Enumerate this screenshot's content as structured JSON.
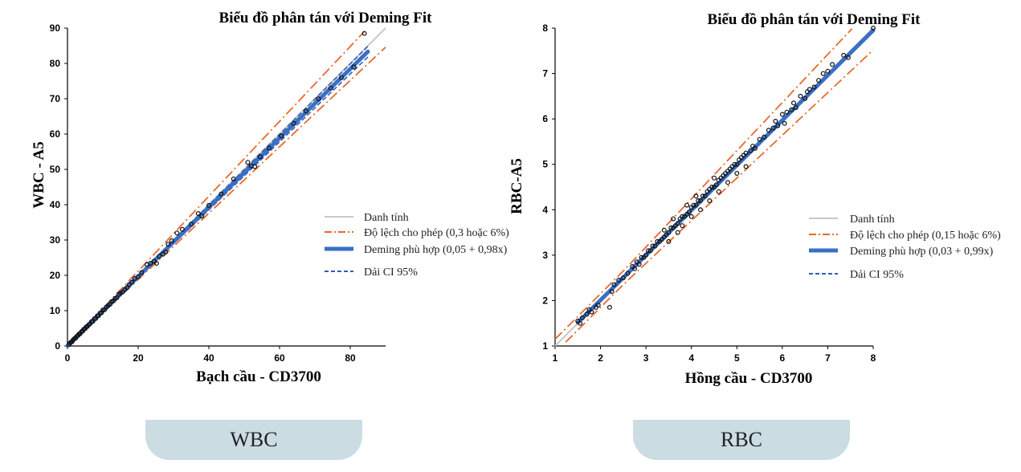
{
  "colors": {
    "identity": "#c8c8c8",
    "tolerance": "#e8692e",
    "deming": "#3a6fc4",
    "ci": "#2f5db5",
    "points": "#111111",
    "tab_background": "#cbdce3"
  },
  "chart_data": [
    {
      "type": "scatter",
      "title": "Biểu đồ phân tán với Deming Fit",
      "xlabel": "Bạch cầu - CD3700",
      "ylabel": "WBC - A5",
      "xlim": [
        0,
        90
      ],
      "ylim": [
        0,
        90
      ],
      "xticks": [
        "0",
        "20",
        "40",
        "60",
        "80"
      ],
      "yticks": [
        "0",
        "10",
        "20",
        "30",
        "40",
        "50",
        "60",
        "70",
        "80",
        "90"
      ],
      "grid": false,
      "legend_position": "right",
      "legend": {
        "identity": "Danh tính",
        "tolerance": "Độ lệch cho phép (0,3 hoặc 6%)",
        "deming": "Deming phù hợp (0,05 + 0,98x)",
        "ci": "Dải CI 95%"
      },
      "deming_fit": {
        "intercept": 0.05,
        "slope": 0.98,
        "x_range": [
          0,
          85
        ]
      },
      "tolerance": {
        "abs": 0.3,
        "rel": 0.06
      },
      "ci_band": 1.5,
      "points": [
        [
          0.4,
          0.4
        ],
        [
          0.7,
          0.8
        ],
        [
          1.0,
          1.1
        ],
        [
          1.3,
          1.2
        ],
        [
          1.6,
          1.7
        ],
        [
          2.0,
          2.1
        ],
        [
          2.3,
          2.2
        ],
        [
          2.6,
          2.7
        ],
        [
          3.0,
          3.0
        ],
        [
          3.3,
          3.4
        ],
        [
          3.6,
          3.5
        ],
        [
          4.0,
          4.1
        ],
        [
          4.3,
          4.2
        ],
        [
          4.6,
          4.7
        ],
        [
          5.0,
          4.9
        ],
        [
          5.3,
          5.4
        ],
        [
          5.6,
          5.5
        ],
        [
          6.0,
          6.0
        ],
        [
          6.4,
          6.3
        ],
        [
          6.8,
          6.9
        ],
        [
          7.2,
          7.0
        ],
        [
          7.6,
          7.7
        ],
        [
          8.0,
          7.8
        ],
        [
          8.4,
          8.5
        ],
        [
          8.8,
          8.6
        ],
        [
          9.2,
          9.3
        ],
        [
          9.6,
          9.4
        ],
        [
          10.0,
          10.2
        ],
        [
          10.5,
          10.3
        ],
        [
          11.0,
          11.0
        ],
        [
          11.5,
          11.4
        ],
        [
          12.0,
          11.8
        ],
        [
          12.5,
          12.6
        ],
        [
          13.0,
          12.8
        ],
        [
          13.5,
          13.5
        ],
        [
          14.0,
          13.7
        ],
        [
          14.5,
          14.6
        ],
        [
          15.0,
          15.0
        ],
        [
          15.6,
          15.3
        ],
        [
          16.2,
          16.0
        ],
        [
          16.8,
          16.5
        ],
        [
          17.5,
          17.4
        ],
        [
          18.2,
          18.0
        ],
        [
          19.0,
          19.1
        ],
        [
          20.0,
          19.6
        ],
        [
          21.0,
          20.8
        ],
        [
          22.5,
          23.0
        ],
        [
          23.5,
          23.4
        ],
        [
          24.5,
          24.0
        ],
        [
          25.2,
          23.4
        ],
        [
          26.0,
          25.4
        ],
        [
          27.0,
          26.0
        ],
        [
          27.8,
          26.6
        ],
        [
          28.5,
          28.8
        ],
        [
          29.5,
          29.8
        ],
        [
          31.0,
          32.0
        ],
        [
          32.5,
          33.0
        ],
        [
          35.0,
          34.5
        ],
        [
          37.0,
          37.5
        ],
        [
          38.0,
          36.8
        ],
        [
          40.0,
          39.8
        ],
        [
          43.5,
          43.0
        ],
        [
          47.0,
          47.3
        ],
        [
          51.0,
          52.0
        ],
        [
          52.0,
          51.0
        ],
        [
          53.0,
          50.8
        ],
        [
          54.5,
          53.6
        ],
        [
          57.0,
          56.0
        ],
        [
          60.5,
          59.5
        ],
        [
          64.0,
          63.0
        ],
        [
          67.5,
          66.5
        ],
        [
          71.0,
          70.0
        ],
        [
          74.5,
          73.0
        ],
        [
          77.5,
          76.0
        ],
        [
          81.0,
          79.0
        ],
        [
          84.0,
          88.5
        ]
      ]
    },
    {
      "type": "scatter",
      "title": "Biểu đồ phân tán với Deming Fit",
      "xlabel": "Hồng cầu - CD3700",
      "ylabel": "RBC-A5",
      "xlim": [
        1,
        8
      ],
      "ylim": [
        1,
        8
      ],
      "xticks": [
        "1",
        "2",
        "3",
        "4",
        "5",
        "6",
        "7",
        "8"
      ],
      "yticks": [
        "1",
        "2",
        "3",
        "4",
        "5",
        "6",
        "7",
        "8"
      ],
      "grid": false,
      "legend_position": "right",
      "legend": {
        "identity": "Danh tính",
        "tolerance": "Độ lệch cho phép (0,15 hoặc 6%)",
        "deming": "Deming phù hợp (0,03 + 0,99x)",
        "ci": "Dải CI 95%"
      },
      "deming_fit": {
        "intercept": 0.03,
        "slope": 0.99,
        "x_range": [
          1.5,
          8
        ]
      },
      "tolerance": {
        "abs": 0.15,
        "rel": 0.06
      },
      "ci_band": 0.03,
      "points": [
        [
          1.5,
          1.55
        ],
        [
          1.55,
          1.5
        ],
        [
          1.6,
          1.62
        ],
        [
          1.7,
          1.7
        ],
        [
          1.75,
          1.8
        ],
        [
          1.8,
          1.75
        ],
        [
          1.9,
          1.85
        ],
        [
          1.95,
          1.9
        ],
        [
          2.2,
          1.85
        ],
        [
          2.25,
          2.2
        ],
        [
          2.3,
          2.35
        ],
        [
          2.4,
          2.45
        ],
        [
          2.5,
          2.5
        ],
        [
          2.6,
          2.6
        ],
        [
          2.7,
          2.75
        ],
        [
          2.75,
          2.7
        ],
        [
          2.8,
          2.85
        ],
        [
          2.85,
          2.8
        ],
        [
          2.9,
          2.95
        ],
        [
          2.95,
          2.95
        ],
        [
          3.0,
          3.0
        ],
        [
          3.05,
          3.1
        ],
        [
          3.1,
          3.1
        ],
        [
          3.15,
          3.2
        ],
        [
          3.2,
          3.2
        ],
        [
          3.25,
          3.3
        ],
        [
          3.3,
          3.3
        ],
        [
          3.35,
          3.35
        ],
        [
          3.4,
          3.4
        ],
        [
          3.4,
          3.55
        ],
        [
          3.45,
          3.45
        ],
        [
          3.5,
          3.5
        ],
        [
          3.5,
          3.3
        ],
        [
          3.55,
          3.6
        ],
        [
          3.6,
          3.6
        ],
        [
          3.6,
          3.8
        ],
        [
          3.65,
          3.65
        ],
        [
          3.7,
          3.7
        ],
        [
          3.7,
          3.5
        ],
        [
          3.75,
          3.8
        ],
        [
          3.8,
          3.85
        ],
        [
          3.8,
          3.65
        ],
        [
          3.85,
          3.85
        ],
        [
          3.9,
          3.9
        ],
        [
          3.9,
          4.1
        ],
        [
          3.95,
          3.95
        ],
        [
          4.0,
          4.05
        ],
        [
          4.0,
          3.85
        ],
        [
          4.05,
          4.1
        ],
        [
          4.1,
          4.1
        ],
        [
          4.1,
          4.3
        ],
        [
          4.15,
          4.2
        ],
        [
          4.2,
          4.2
        ],
        [
          4.2,
          4.0
        ],
        [
          4.25,
          4.3
        ],
        [
          4.3,
          4.3
        ],
        [
          4.35,
          4.4
        ],
        [
          4.4,
          4.45
        ],
        [
          4.4,
          4.2
        ],
        [
          4.45,
          4.5
        ],
        [
          4.5,
          4.5
        ],
        [
          4.5,
          4.7
        ],
        [
          4.55,
          4.55
        ],
        [
          4.6,
          4.65
        ],
        [
          4.6,
          4.4
        ],
        [
          4.65,
          4.7
        ],
        [
          4.7,
          4.75
        ],
        [
          4.75,
          4.8
        ],
        [
          4.8,
          4.85
        ],
        [
          4.8,
          4.6
        ],
        [
          4.85,
          4.9
        ],
        [
          4.9,
          4.95
        ],
        [
          4.95,
          5.0
        ],
        [
          5.0,
          5.0
        ],
        [
          5.0,
          4.8
        ],
        [
          5.05,
          5.1
        ],
        [
          5.1,
          5.15
        ],
        [
          5.15,
          5.2
        ],
        [
          5.2,
          5.25
        ],
        [
          5.2,
          4.95
        ],
        [
          5.3,
          5.3
        ],
        [
          5.35,
          5.4
        ],
        [
          5.4,
          5.35
        ],
        [
          5.5,
          5.55
        ],
        [
          5.6,
          5.6
        ],
        [
          5.7,
          5.75
        ],
        [
          5.8,
          5.8
        ],
        [
          5.85,
          5.95
        ],
        [
          5.9,
          5.85
        ],
        [
          6.0,
          6.1
        ],
        [
          6.05,
          5.9
        ],
        [
          6.1,
          6.15
        ],
        [
          6.2,
          6.2
        ],
        [
          6.25,
          6.35
        ],
        [
          6.3,
          6.25
        ],
        [
          6.4,
          6.5
        ],
        [
          6.5,
          6.45
        ],
        [
          6.55,
          6.6
        ],
        [
          6.6,
          6.65
        ],
        [
          6.7,
          6.7
        ],
        [
          6.8,
          6.85
        ],
        [
          6.9,
          7.0
        ],
        [
          7.0,
          7.05
        ],
        [
          7.1,
          7.2
        ],
        [
          7.35,
          7.4
        ],
        [
          7.45,
          7.35
        ],
        [
          8.0,
          8.0
        ]
      ]
    }
  ],
  "tabs": {
    "wbc": "WBC",
    "rbc": "RBC"
  }
}
